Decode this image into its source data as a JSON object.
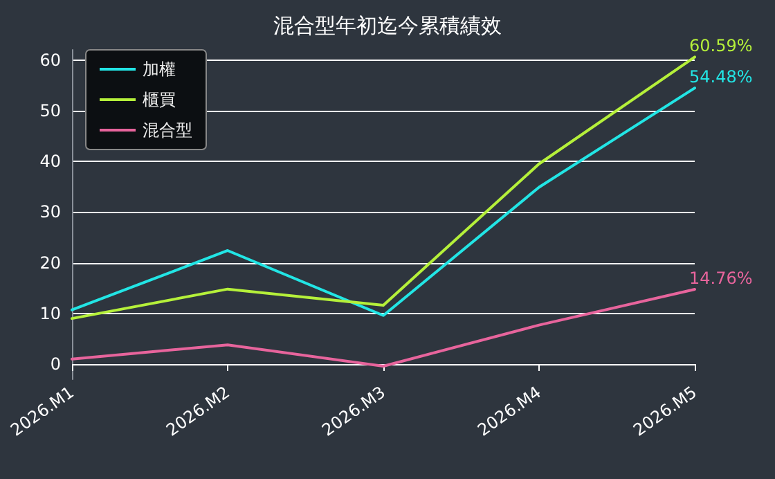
{
  "chart_data": {
    "type": "line",
    "title": "混合型年初迄今累積績效",
    "categories": [
      "2026.M1",
      "2026.M2",
      "2026.M3",
      "2026.M4",
      "2026.M5"
    ],
    "series": [
      {
        "name": "加權",
        "color": "#22e5e5",
        "values": [
          10.7,
          22.4,
          9.6,
          34.9,
          54.48
        ],
        "value_labels": [
          null,
          null,
          null,
          null,
          "54.48%"
        ]
      },
      {
        "name": "櫃買",
        "color": "#b5f03a",
        "values": [
          9.0,
          14.8,
          11.6,
          39.5,
          60.59
        ],
        "value_labels": [
          null,
          null,
          null,
          null,
          "60.59%"
        ]
      },
      {
        "name": "混合型",
        "color": "#e7649c",
        "values": [
          1.0,
          3.8,
          -0.4,
          7.7,
          14.76
        ],
        "value_labels": [
          null,
          null,
          null,
          null,
          "14.76%"
        ]
      }
    ],
    "ylim": [
      -3,
      62
    ],
    "yticks": [
      0,
      10,
      20,
      30,
      40,
      50,
      60
    ],
    "grid": "y",
    "legend": "top left",
    "marker": "none",
    "line_style": "solid"
  }
}
